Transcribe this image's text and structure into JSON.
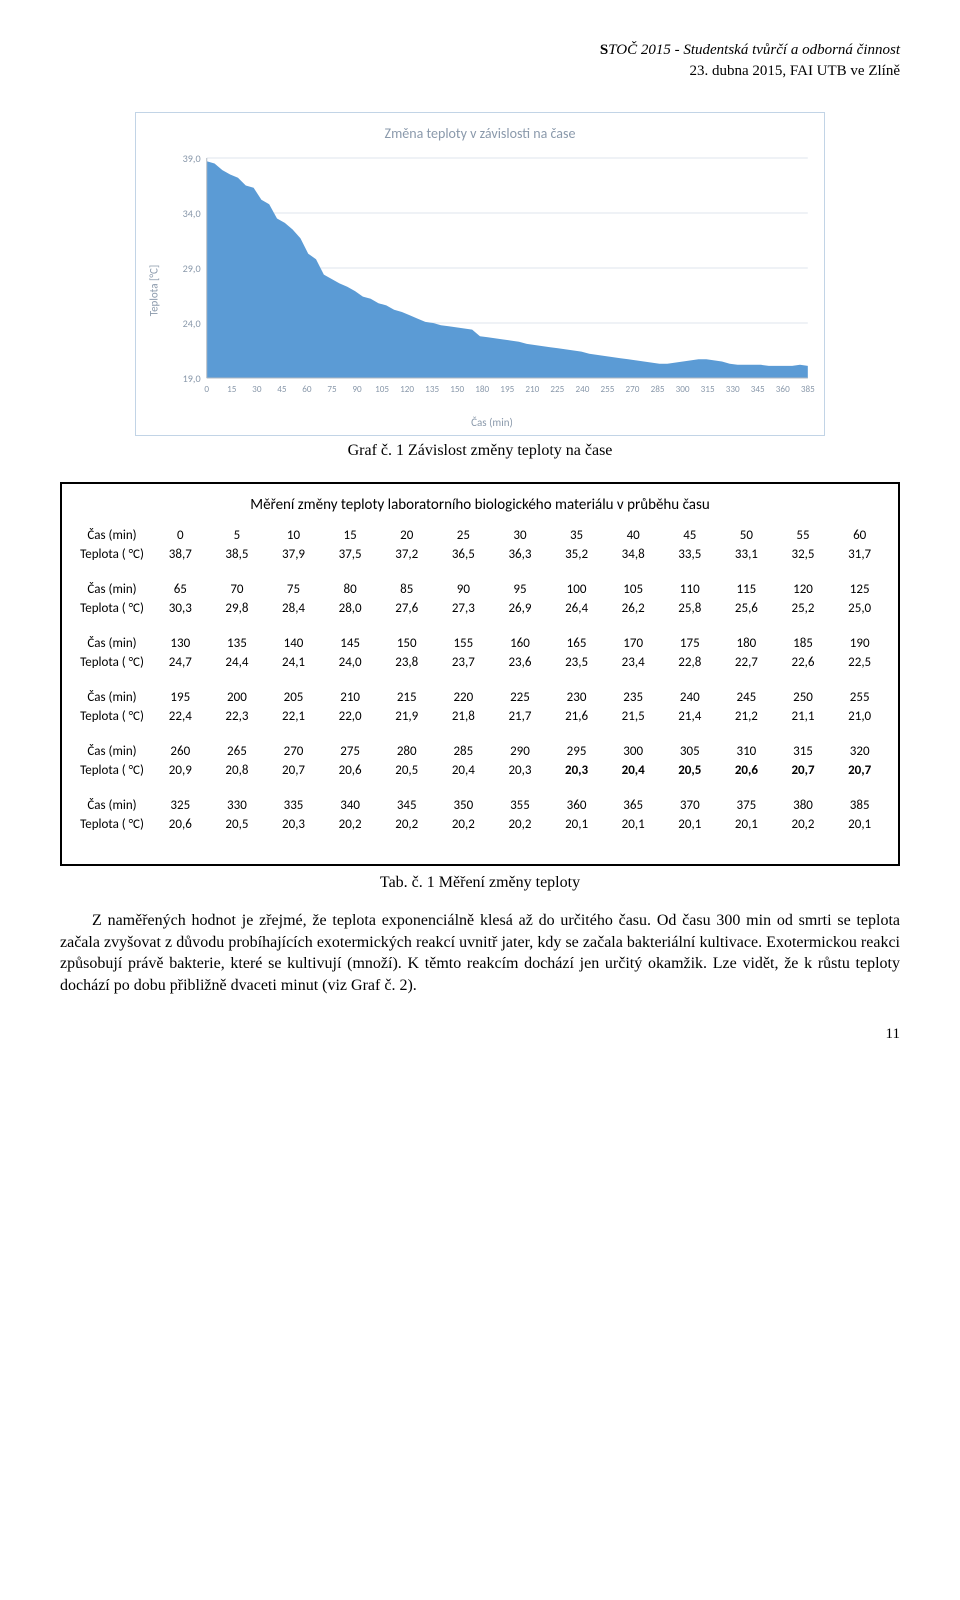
{
  "header": {
    "line1_prefix": "S",
    "line1_rest": "TOČ 2015 - Studentská tvůrčí a odborná činnost",
    "line2": "23. dubna 2015, FAI UTB ve Zlíně"
  },
  "chart": {
    "title": "Změna teploty v závislosti na čase",
    "ylabel": "Teplota [°C]",
    "xlabel": "Čas (min)",
    "yticks": [
      19.0,
      24.0,
      29.0,
      34.0,
      39.0
    ],
    "xtick_labels": [
      "0",
      "15",
      "30",
      "45",
      "60",
      "75",
      "90",
      "105",
      "120",
      "135",
      "150",
      "180",
      "195",
      "210",
      "225",
      "240",
      "255",
      "270",
      "285",
      "300",
      "315",
      "330",
      "345",
      "360",
      "385"
    ],
    "bg": "#ffffff",
    "grid_color": "#dfe6ee",
    "axis_color": "#b0b8c2",
    "tick_text_color": "#8a99ab",
    "area_color": "#5b9bd5",
    "series_y": [
      38.7,
      38.5,
      37.9,
      37.5,
      37.2,
      36.5,
      36.3,
      35.2,
      34.8,
      33.5,
      33.1,
      32.5,
      31.7,
      30.3,
      29.8,
      28.4,
      28.0,
      27.6,
      27.3,
      26.9,
      26.4,
      26.2,
      25.8,
      25.6,
      25.2,
      25.0,
      24.7,
      24.4,
      24.1,
      24.0,
      23.8,
      23.7,
      23.6,
      23.5,
      23.4,
      22.8,
      22.7,
      22.6,
      22.5,
      22.4,
      22.3,
      22.1,
      22.0,
      21.9,
      21.8,
      21.7,
      21.6,
      21.5,
      21.4,
      21.2,
      21.1,
      21.0,
      20.9,
      20.8,
      20.7,
      20.6,
      20.5,
      20.4,
      20.3,
      20.3,
      20.4,
      20.5,
      20.6,
      20.7,
      20.7,
      20.6,
      20.5,
      20.3,
      20.2,
      20.2,
      20.2,
      20.2,
      20.1,
      20.1,
      20.1,
      20.1,
      20.2,
      20.1
    ]
  },
  "graf_caption": "Graf č. 1 Závislost změny teploty na čase",
  "tables": {
    "title": "Měření změny teploty laboratorního biologického materiálu v průběhu času",
    "row_labels": {
      "time": "Čas (min)",
      "temp": "Teplota ( °C)"
    },
    "blocks": [
      {
        "time": [
          "0",
          "5",
          "10",
          "15",
          "20",
          "25",
          "30",
          "35",
          "40",
          "45",
          "50",
          "55",
          "60"
        ],
        "temp": [
          "38,7",
          "38,5",
          "37,9",
          "37,5",
          "37,2",
          "36,5",
          "36,3",
          "35,2",
          "34,8",
          "33,5",
          "33,1",
          "32,5",
          "31,7"
        ],
        "bold": false
      },
      {
        "time": [
          "65",
          "70",
          "75",
          "80",
          "85",
          "90",
          "95",
          "100",
          "105",
          "110",
          "115",
          "120",
          "125"
        ],
        "temp": [
          "30,3",
          "29,8",
          "28,4",
          "28,0",
          "27,6",
          "27,3",
          "26,9",
          "26,4",
          "26,2",
          "25,8",
          "25,6",
          "25,2",
          "25,0"
        ],
        "bold": false
      },
      {
        "time": [
          "130",
          "135",
          "140",
          "145",
          "150",
          "155",
          "160",
          "165",
          "170",
          "175",
          "180",
          "185",
          "190"
        ],
        "temp": [
          "24,7",
          "24,4",
          "24,1",
          "24,0",
          "23,8",
          "23,7",
          "23,6",
          "23,5",
          "23,4",
          "22,8",
          "22,7",
          "22,6",
          "22,5"
        ],
        "bold": false
      },
      {
        "time": [
          "195",
          "200",
          "205",
          "210",
          "215",
          "220",
          "225",
          "230",
          "235",
          "240",
          "245",
          "250",
          "255"
        ],
        "temp": [
          "22,4",
          "22,3",
          "22,1",
          "22,0",
          "21,9",
          "21,8",
          "21,7",
          "21,6",
          "21,5",
          "21,4",
          "21,2",
          "21,1",
          "21,0"
        ],
        "bold": false
      },
      {
        "time": [
          "260",
          "265",
          "270",
          "275",
          "280",
          "285",
          "290",
          "295",
          "300",
          "305",
          "310",
          "315",
          "320"
        ],
        "temp": [
          "20,9",
          "20,8",
          "20,7",
          "20,6",
          "20,5",
          "20,4",
          "20,3",
          "20,3",
          "20,4",
          "20,5",
          "20,6",
          "20,7",
          "20,7"
        ],
        "bold": true
      },
      {
        "time": [
          "325",
          "330",
          "335",
          "340",
          "345",
          "350",
          "355",
          "360",
          "365",
          "370",
          "375",
          "380",
          "385"
        ],
        "temp": [
          "20,6",
          "20,5",
          "20,3",
          "20,2",
          "20,2",
          "20,2",
          "20,2",
          "20,1",
          "20,1",
          "20,1",
          "20,1",
          "20,2",
          "20,1"
        ],
        "bold": false
      }
    ]
  },
  "tab_caption": "Tab. č. 1 Měření změny teploty",
  "paragraph": "Z naměřených hodnot je zřejmé, že teplota exponenciálně klesá až do určitého času. Od času 300 min od smrti se teplota začala zvyšovat z důvodu probíhajících exotermických reakcí uvnitř jater, kdy se začala bakteriální kultivace. Exotermickou reakci způsobují právě bakterie, které se kultivují (množí). K těmto reakcím dochází jen určitý okamžik. Lze vidět, že k růstu teploty dochází po dobu přibližně dvaceti minut (viz Graf č. 2).",
  "page_number": "11"
}
